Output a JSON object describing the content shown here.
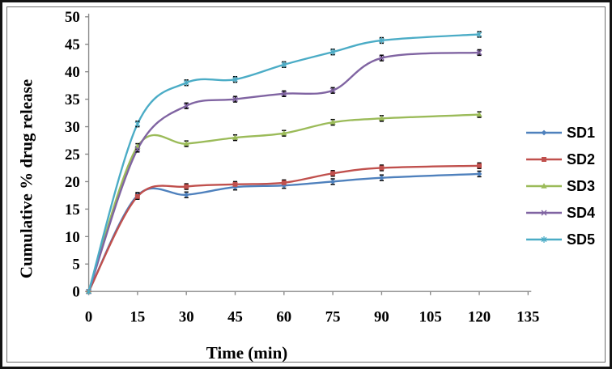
{
  "chart_data": {
    "type": "line",
    "title": "",
    "xlabel": "Time (min)",
    "ylabel": "Cumulative % drug release",
    "x": [
      0,
      15,
      30,
      45,
      60,
      75,
      90,
      120
    ],
    "x_ticks": [
      0,
      15,
      30,
      45,
      60,
      75,
      90,
      105,
      120,
      135
    ],
    "y_ticks": [
      0,
      5,
      10,
      15,
      20,
      25,
      30,
      35,
      40,
      45,
      50
    ],
    "xlim": [
      0,
      135
    ],
    "ylim": [
      0,
      50
    ],
    "grid": false,
    "legend_position": "right-middle",
    "smoothed_lines": true,
    "error_bar_half_height": 0.5,
    "series": [
      {
        "name": "SD1",
        "color": "#4F81BD",
        "marker": "diamond",
        "values": [
          0,
          17.5,
          17.6,
          19.0,
          19.3,
          20.0,
          20.7,
          21.4
        ]
      },
      {
        "name": "SD2",
        "color": "#C0504D",
        "marker": "square",
        "values": [
          0,
          17.3,
          19.1,
          19.5,
          19.8,
          21.5,
          22.5,
          22.9
        ]
      },
      {
        "name": "SD3",
        "color": "#9BBB59",
        "marker": "triangle",
        "values": [
          0,
          26.4,
          26.9,
          28.0,
          28.8,
          30.8,
          31.5,
          32.2
        ]
      },
      {
        "name": "SD4",
        "color": "#8064A2",
        "marker": "x",
        "values": [
          0,
          25.9,
          33.8,
          35.0,
          36.0,
          36.6,
          42.5,
          43.5
        ]
      },
      {
        "name": "SD5",
        "color": "#4BACC6",
        "marker": "asterisk",
        "values": [
          0,
          30.5,
          38.0,
          38.6,
          41.3,
          43.6,
          45.7,
          46.8
        ]
      }
    ],
    "axis_color": "#8A8A8A",
    "error_bar_color": "#000000",
    "text_color": "#000000"
  }
}
